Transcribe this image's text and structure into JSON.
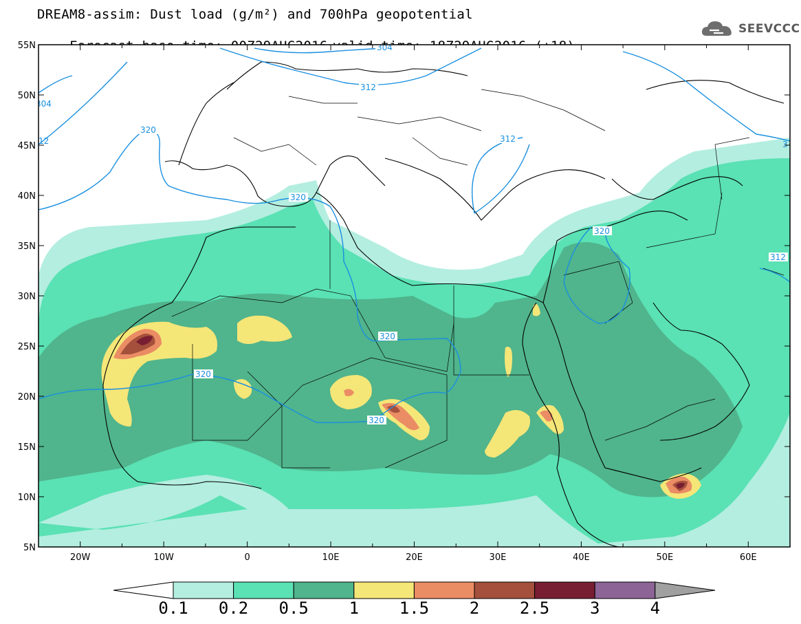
{
  "title": {
    "line1": "DREAM8-assim: Dust load (g/m²) and 700hPa geopotential",
    "base_time": "Forecast base time: 00Z29AUG2016",
    "valid_time": "valid time: 18Z29AUG2016 (+18)"
  },
  "logo": {
    "text": "SEEVCCC",
    "icon": "cloud-icon"
  },
  "map": {
    "lon_range": [
      -25,
      65
    ],
    "lat_range": [
      5,
      55
    ],
    "lon_ticks": [
      "20W",
      "10W",
      "0",
      "10E",
      "20E",
      "30E",
      "40E",
      "50E",
      "60E"
    ],
    "lat_ticks": [
      "55N",
      "50N",
      "45N",
      "40N",
      "35N",
      "30N",
      "25N",
      "20N",
      "15N",
      "10N",
      "5N"
    ],
    "contour_labels": [
      "304",
      "312",
      "320",
      "320",
      "320",
      "320",
      "320",
      "312",
      "320",
      "312",
      "304",
      "12",
      "3"
    ]
  },
  "colorbar": {
    "colors": [
      "#ffffff",
      "#b4eee0",
      "#5ae1b4",
      "#50b48c",
      "#f5e678",
      "#ea8c64",
      "#a4503c",
      "#781e32",
      "#8c6496",
      "#a0a0a0"
    ],
    "labels": [
      "0.1",
      "0.2",
      "0.5",
      "1",
      "1.5",
      "2",
      "2.5",
      "3",
      "4"
    ]
  }
}
